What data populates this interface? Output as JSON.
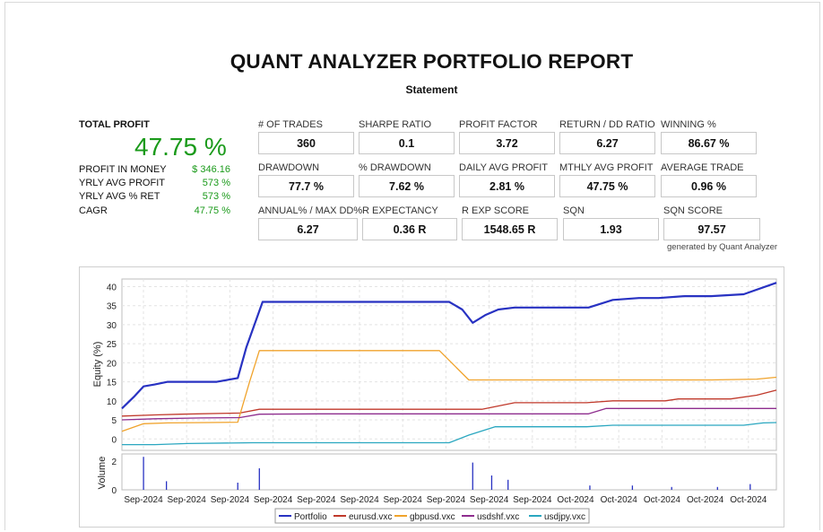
{
  "report": {
    "title": "QUANT ANALYZER PORTFOLIO REPORT",
    "subtitle": "Statement",
    "generated_by": "generated by Quant Analyzer"
  },
  "summary": {
    "total_profit_label": "TOTAL PROFIT",
    "total_profit_value": "47.75 %",
    "rows": [
      {
        "label": "PROFIT IN MONEY",
        "value": "$ 346.16"
      },
      {
        "label": "YRLY AVG PROFIT",
        "value": "573 %"
      },
      {
        "label": "YRLY AVG % RET",
        "value": "573 %"
      },
      {
        "label": "CAGR",
        "value": "47.75 %"
      }
    ]
  },
  "metrics": [
    [
      {
        "label": "# OF TRADES",
        "value": "360"
      },
      {
        "label": "SHARPE RATIO",
        "value": "0.1"
      },
      {
        "label": "PROFIT FACTOR",
        "value": "3.72"
      },
      {
        "label": "RETURN / DD RATIO",
        "value": "6.27"
      },
      {
        "label": "WINNING %",
        "value": "86.67 %"
      }
    ],
    [
      {
        "label": "DRAWDOWN",
        "value": "77.7 %"
      },
      {
        "label": "% DRAWDOWN",
        "value": "7.62 %"
      },
      {
        "label": "DAILY AVG PROFIT",
        "value": "2.81 %"
      },
      {
        "label": "MTHLY AVG PROFIT",
        "value": "47.75 %"
      },
      {
        "label": "AVERAGE TRADE",
        "value": "0.96 %"
      }
    ],
    [
      {
        "label": "ANNUAL% / MAX DD%",
        "value": "6.27"
      },
      {
        "label": "R EXPECTANCY",
        "value": "0.36 R"
      },
      {
        "label": "R EXP SCORE",
        "value": "1548.65 R"
      },
      {
        "label": "SQN",
        "value": "1.93"
      },
      {
        "label": "SQN SCORE",
        "value": "97.57"
      }
    ]
  ],
  "chart_data": {
    "type": "line",
    "ylabel": "Equity (%)",
    "ylim": [
      -3,
      42
    ],
    "yticks": [
      0,
      5,
      10,
      15,
      20,
      25,
      30,
      35,
      40
    ],
    "xlim": [
      0,
      100
    ],
    "xtick_labels": [
      "Sep-2024",
      "Sep-2024",
      "Sep-2024",
      "Sep-2024",
      "Sep-2024",
      "Sep-2024",
      "Sep-2024",
      "Sep-2024",
      "Sep-2024",
      "Sep-2024",
      "Oct-2024",
      "Oct-2024",
      "Oct-2024",
      "Oct-2024",
      "Oct-2024"
    ],
    "grid": true,
    "legend_position": "bottom",
    "series": [
      {
        "name": "Portfolio",
        "color": "#2832c2",
        "points": [
          [
            0,
            8
          ],
          [
            1.8,
            11
          ],
          [
            3.3,
            13.8
          ],
          [
            5,
            14.3
          ],
          [
            7,
            15
          ],
          [
            10,
            15
          ],
          [
            14.5,
            15
          ],
          [
            17.7,
            16
          ],
          [
            19,
            24
          ],
          [
            21.5,
            36
          ],
          [
            23,
            36
          ],
          [
            50,
            36
          ],
          [
            52,
            34
          ],
          [
            53.6,
            30.5
          ],
          [
            55.5,
            32.5
          ],
          [
            57.5,
            34
          ],
          [
            60,
            34.5
          ],
          [
            67,
            34.5
          ],
          [
            70,
            34.5
          ],
          [
            71.3,
            34.5
          ],
          [
            75,
            36.5
          ],
          [
            79,
            37
          ],
          [
            82,
            37
          ],
          [
            86,
            37.5
          ],
          [
            90,
            37.5
          ],
          [
            95,
            38
          ],
          [
            100,
            41
          ]
        ]
      },
      {
        "name": "eurusd.vxc",
        "color": "#c0392b",
        "points": [
          [
            0,
            6
          ],
          [
            5,
            6.3
          ],
          [
            9,
            6.5
          ],
          [
            18,
            6.8
          ],
          [
            21,
            7.8
          ],
          [
            25,
            7.8
          ],
          [
            50,
            7.8
          ],
          [
            55,
            7.8
          ],
          [
            60,
            9.5
          ],
          [
            67,
            9.5
          ],
          [
            71,
            9.5
          ],
          [
            75,
            10
          ],
          [
            83,
            10
          ],
          [
            85,
            10.5
          ],
          [
            93,
            10.5
          ],
          [
            97,
            11.5
          ],
          [
            100,
            12.8
          ]
        ]
      },
      {
        "name": "gbpusd.vxc",
        "color": "#f0a32c",
        "points": [
          [
            0,
            2
          ],
          [
            3.3,
            4
          ],
          [
            7,
            4.2
          ],
          [
            13,
            4.3
          ],
          [
            17.7,
            4.4
          ],
          [
            19.5,
            15
          ],
          [
            21,
            23.2
          ],
          [
            25,
            23.2
          ],
          [
            45,
            23.2
          ],
          [
            48.5,
            23.2
          ],
          [
            53,
            15.5
          ],
          [
            60,
            15.5
          ],
          [
            80,
            15.5
          ],
          [
            90,
            15.5
          ],
          [
            97,
            15.7
          ],
          [
            100,
            16.2
          ]
        ]
      },
      {
        "name": "usdshf.vxc",
        "color": "#8e2d8e",
        "points": [
          [
            0,
            5
          ],
          [
            5,
            5.3
          ],
          [
            12,
            5.5
          ],
          [
            18,
            5.6
          ],
          [
            21,
            6.5
          ],
          [
            30,
            6.6
          ],
          [
            50,
            6.6
          ],
          [
            70,
            6.6
          ],
          [
            71.3,
            6.6
          ],
          [
            74,
            8
          ],
          [
            80,
            8
          ],
          [
            100,
            8
          ]
        ]
      },
      {
        "name": "usdjpy.vxc",
        "color": "#2aa7c0",
        "points": [
          [
            0,
            -1.5
          ],
          [
            5,
            -1.5
          ],
          [
            10,
            -1.2
          ],
          [
            20,
            -1
          ],
          [
            30,
            -1
          ],
          [
            50,
            -1
          ],
          [
            53,
            1
          ],
          [
            57,
            3.2
          ],
          [
            65,
            3.2
          ],
          [
            71,
            3.2
          ],
          [
            75,
            3.6
          ],
          [
            80,
            3.6
          ],
          [
            95,
            3.6
          ],
          [
            98,
            4.2
          ],
          [
            100,
            4.3
          ]
        ]
      }
    ],
    "volume": {
      "ylabel": "Volume",
      "ylim": [
        0,
        2.5
      ],
      "yticks": [
        0,
        2
      ],
      "bars": [
        [
          3.3,
          2.3
        ],
        [
          6.8,
          0.6
        ],
        [
          17.7,
          0.5
        ],
        [
          21,
          1.5
        ],
        [
          53.6,
          1.9
        ],
        [
          56.5,
          1
        ],
        [
          59,
          0.7
        ],
        [
          71.5,
          0.3
        ],
        [
          78,
          0.3
        ],
        [
          84,
          0.2
        ],
        [
          91,
          0.2
        ],
        [
          96,
          0.4
        ]
      ]
    }
  }
}
